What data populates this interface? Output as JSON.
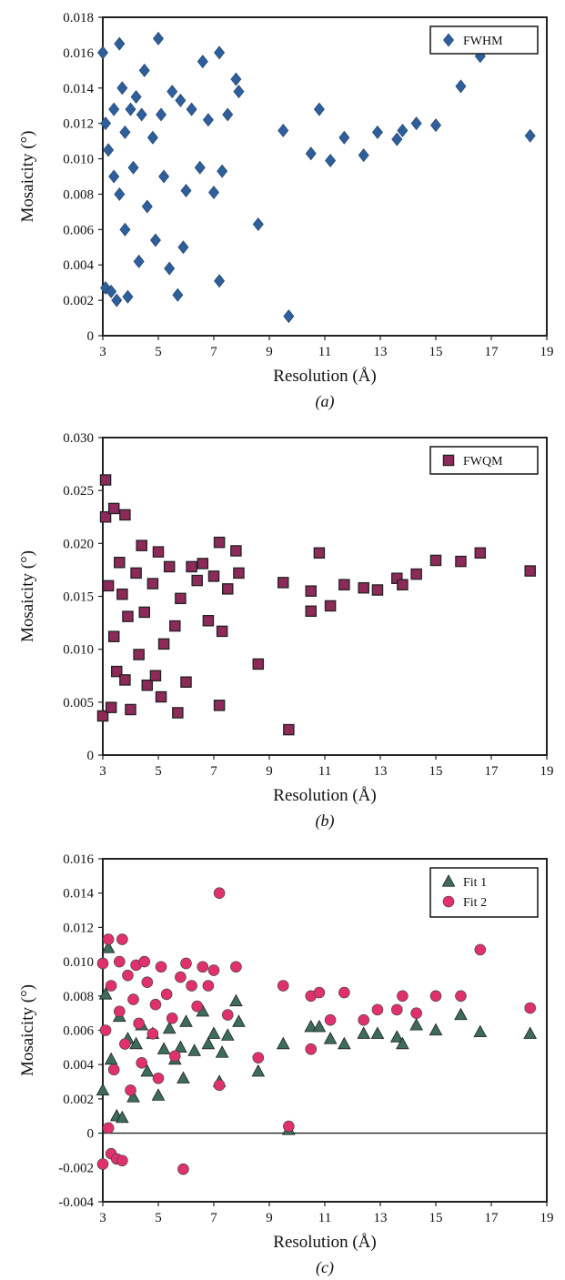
{
  "chart_data": [
    {
      "type": "scatter",
      "panel_label": "(a)",
      "xlabel": "Resolution (Å)",
      "ylabel": "Mosaicity (°)",
      "xlim": [
        3,
        19
      ],
      "ylim": [
        0,
        0.018
      ],
      "x_ticks": [
        "3",
        "5",
        "7",
        "9",
        "11",
        "13",
        "15",
        "17",
        "19"
      ],
      "y_ticks": [
        "0",
        "0.002",
        "0.004",
        "0.006",
        "0.008",
        "0.010",
        "0.012",
        "0.014",
        "0.016",
        "0.018"
      ],
      "legend_position": "top-right",
      "grid": false,
      "series": [
        {
          "name": "FWHM",
          "marker": "diamond",
          "color": "#2e5f9a",
          "points": [
            [
              3.0,
              0.016
            ],
            [
              3.1,
              0.0027
            ],
            [
              3.1,
              0.012
            ],
            [
              3.2,
              0.0105
            ],
            [
              3.3,
              0.0025
            ],
            [
              3.4,
              0.0128
            ],
            [
              3.4,
              0.009
            ],
            [
              3.5,
              0.002
            ],
            [
              3.6,
              0.0165
            ],
            [
              3.6,
              0.008
            ],
            [
              3.7,
              0.014
            ],
            [
              3.8,
              0.006
            ],
            [
              3.8,
              0.0115
            ],
            [
              3.9,
              0.0022
            ],
            [
              4.0,
              0.0128
            ],
            [
              4.1,
              0.0095
            ],
            [
              4.2,
              0.0135
            ],
            [
              4.3,
              0.0042
            ],
            [
              4.4,
              0.0125
            ],
            [
              4.5,
              0.015
            ],
            [
              4.6,
              0.0073
            ],
            [
              4.8,
              0.0112
            ],
            [
              4.9,
              0.0054
            ],
            [
              5.0,
              0.0168
            ],
            [
              5.1,
              0.0125
            ],
            [
              5.2,
              0.009
            ],
            [
              5.4,
              0.0038
            ],
            [
              5.5,
              0.0138
            ],
            [
              5.7,
              0.0023
            ],
            [
              5.8,
              0.0133
            ],
            [
              5.9,
              0.005
            ],
            [
              6.0,
              0.0082
            ],
            [
              6.2,
              0.0128
            ],
            [
              6.5,
              0.0095
            ],
            [
              6.6,
              0.0155
            ],
            [
              6.8,
              0.0122
            ],
            [
              7.0,
              0.0081
            ],
            [
              7.2,
              0.016
            ],
            [
              7.2,
              0.0031
            ],
            [
              7.3,
              0.0093
            ],
            [
              7.5,
              0.0125
            ],
            [
              7.8,
              0.0145
            ],
            [
              7.9,
              0.0138
            ],
            [
              8.6,
              0.0063
            ],
            [
              9.5,
              0.0116
            ],
            [
              9.7,
              0.0011
            ],
            [
              10.5,
              0.0103
            ],
            [
              10.8,
              0.0128
            ],
            [
              11.2,
              0.0099
            ],
            [
              11.7,
              0.0112
            ],
            [
              12.4,
              0.0102
            ],
            [
              12.9,
              0.0115
            ],
            [
              13.6,
              0.0111
            ],
            [
              13.8,
              0.0116
            ],
            [
              14.3,
              0.012
            ],
            [
              15.0,
              0.0119
            ],
            [
              15.9,
              0.0141
            ],
            [
              16.6,
              0.0158
            ],
            [
              18.4,
              0.0113
            ]
          ]
        }
      ]
    },
    {
      "type": "scatter",
      "panel_label": "(b)",
      "xlabel": "Resolution (Å)",
      "ylabel": "Mosaicity (°)",
      "xlim": [
        3,
        19
      ],
      "ylim": [
        0,
        0.03
      ],
      "x_ticks": [
        "3",
        "5",
        "7",
        "9",
        "11",
        "13",
        "15",
        "17",
        "19"
      ],
      "y_ticks": [
        "0",
        "0.005",
        "0.010",
        "0.015",
        "0.020",
        "0.025",
        "0.030"
      ],
      "legend_position": "top-right",
      "grid": false,
      "series": [
        {
          "name": "FWQM",
          "marker": "square",
          "color": "#8e2a5a",
          "points": [
            [
              3.0,
              0.0037
            ],
            [
              3.1,
              0.026
            ],
            [
              3.1,
              0.0225
            ],
            [
              3.2,
              0.016
            ],
            [
              3.3,
              0.0045
            ],
            [
              3.4,
              0.0233
            ],
            [
              3.4,
              0.0112
            ],
            [
              3.5,
              0.0079
            ],
            [
              3.6,
              0.0182
            ],
            [
              3.7,
              0.0152
            ],
            [
              3.8,
              0.0227
            ],
            [
              3.8,
              0.0071
            ],
            [
              3.9,
              0.0131
            ],
            [
              4.0,
              0.0043
            ],
            [
              4.2,
              0.0172
            ],
            [
              4.3,
              0.0095
            ],
            [
              4.4,
              0.0198
            ],
            [
              4.5,
              0.0135
            ],
            [
              4.6,
              0.0066
            ],
            [
              4.8,
              0.0162
            ],
            [
              4.9,
              0.0075
            ],
            [
              5.0,
              0.0192
            ],
            [
              5.1,
              0.0055
            ],
            [
              5.2,
              0.0105
            ],
            [
              5.4,
              0.0178
            ],
            [
              5.6,
              0.0122
            ],
            [
              5.7,
              0.004
            ],
            [
              5.8,
              0.0148
            ],
            [
              6.0,
              0.0069
            ],
            [
              6.2,
              0.0178
            ],
            [
              6.4,
              0.0165
            ],
            [
              6.6,
              0.0181
            ],
            [
              6.8,
              0.0127
            ],
            [
              7.0,
              0.0169
            ],
            [
              7.2,
              0.0201
            ],
            [
              7.2,
              0.0047
            ],
            [
              7.3,
              0.0117
            ],
            [
              7.5,
              0.0157
            ],
            [
              7.8,
              0.0193
            ],
            [
              7.9,
              0.0172
            ],
            [
              8.6,
              0.0086
            ],
            [
              9.5,
              0.0163
            ],
            [
              9.7,
              0.0024
            ],
            [
              10.5,
              0.0136
            ],
            [
              10.5,
              0.0155
            ],
            [
              10.8,
              0.0191
            ],
            [
              11.2,
              0.0141
            ],
            [
              11.7,
              0.0161
            ],
            [
              12.4,
              0.0158
            ],
            [
              12.9,
              0.0156
            ],
            [
              13.6,
              0.0167
            ],
            [
              13.8,
              0.0161
            ],
            [
              14.3,
              0.0171
            ],
            [
              15.0,
              0.0184
            ],
            [
              15.9,
              0.0183
            ],
            [
              16.6,
              0.0191
            ],
            [
              18.4,
              0.0174
            ]
          ]
        }
      ]
    },
    {
      "type": "scatter",
      "panel_label": "(c)",
      "xlabel": "Resolution (Å)",
      "ylabel": "Mosaicity (°)",
      "xlim": [
        3,
        19
      ],
      "ylim": [
        -0.004,
        0.016
      ],
      "x_ticks": [
        "3",
        "5",
        "7",
        "9",
        "11",
        "13",
        "15",
        "17",
        "19"
      ],
      "y_ticks": [
        "-0.004",
        "-0.002",
        "0",
        "0.002",
        "0.004",
        "0.006",
        "0.008",
        "0.010",
        "0.012",
        "0.014",
        "0.016"
      ],
      "zero_line": true,
      "legend_position": "top-right",
      "grid": false,
      "series": [
        {
          "name": "Fit 1",
          "marker": "triangle",
          "color": "#3d6b5c",
          "points": [
            [
              3.0,
              0.0025
            ],
            [
              3.1,
              0.0081
            ],
            [
              3.2,
              0.0108
            ],
            [
              3.3,
              0.0043
            ],
            [
              3.5,
              0.001
            ],
            [
              3.6,
              0.0068
            ],
            [
              3.7,
              0.0009
            ],
            [
              3.9,
              0.0055
            ],
            [
              4.1,
              0.0021
            ],
            [
              4.2,
              0.0052
            ],
            [
              4.4,
              0.0063
            ],
            [
              4.6,
              0.0036
            ],
            [
              4.8,
              0.0058
            ],
            [
              5.0,
              0.0022
            ],
            [
              5.2,
              0.0049
            ],
            [
              5.4,
              0.0061
            ],
            [
              5.6,
              0.0043
            ],
            [
              5.8,
              0.005
            ],
            [
              5.9,
              0.0032
            ],
            [
              6.0,
              0.0065
            ],
            [
              6.3,
              0.0048
            ],
            [
              6.6,
              0.0071
            ],
            [
              6.8,
              0.0052
            ],
            [
              7.0,
              0.0058
            ],
            [
              7.2,
              0.003
            ],
            [
              7.3,
              0.0047
            ],
            [
              7.5,
              0.0057
            ],
            [
              7.8,
              0.0077
            ],
            [
              7.9,
              0.0065
            ],
            [
              8.6,
              0.0036
            ],
            [
              9.5,
              0.0052
            ],
            [
              9.7,
              0.0002
            ],
            [
              10.5,
              0.0062
            ],
            [
              10.8,
              0.0062
            ],
            [
              11.2,
              0.0055
            ],
            [
              11.7,
              0.0052
            ],
            [
              12.4,
              0.0058
            ],
            [
              12.9,
              0.0058
            ],
            [
              13.6,
              0.0056
            ],
            [
              13.8,
              0.0052
            ],
            [
              14.3,
              0.0063
            ],
            [
              15.0,
              0.006
            ],
            [
              15.9,
              0.0069
            ],
            [
              16.6,
              0.0059
            ],
            [
              18.4,
              0.0058
            ]
          ]
        },
        {
          "name": "Fit 2",
          "marker": "circle",
          "color": "#e0306e",
          "points": [
            [
              3.0,
              -0.0018
            ],
            [
              3.0,
              0.0099
            ],
            [
              3.1,
              0.006
            ],
            [
              3.2,
              0.0113
            ],
            [
              3.2,
              0.0003
            ],
            [
              3.3,
              -0.0012
            ],
            [
              3.3,
              0.0086
            ],
            [
              3.4,
              0.0037
            ],
            [
              3.5,
              -0.0015
            ],
            [
              3.6,
              0.01
            ],
            [
              3.6,
              0.0071
            ],
            [
              3.7,
              0.0113
            ],
            [
              3.7,
              -0.0016
            ],
            [
              3.8,
              0.0052
            ],
            [
              3.9,
              0.0092
            ],
            [
              4.0,
              0.0025
            ],
            [
              4.1,
              0.0078
            ],
            [
              4.2,
              0.0098
            ],
            [
              4.3,
              0.0064
            ],
            [
              4.4,
              0.0041
            ],
            [
              4.5,
              0.01
            ],
            [
              4.6,
              0.0088
            ],
            [
              4.8,
              0.0058
            ],
            [
              4.9,
              0.0075
            ],
            [
              5.0,
              0.0032
            ],
            [
              5.1,
              0.0097
            ],
            [
              5.3,
              0.0081
            ],
            [
              5.5,
              0.0067
            ],
            [
              5.6,
              0.0045
            ],
            [
              5.8,
              0.0091
            ],
            [
              5.9,
              -0.0021
            ],
            [
              6.0,
              0.0099
            ],
            [
              6.2,
              0.0086
            ],
            [
              6.4,
              0.0074
            ],
            [
              6.6,
              0.0097
            ],
            [
              6.8,
              0.0086
            ],
            [
              7.0,
              0.0095
            ],
            [
              7.2,
              0.014
            ],
            [
              7.2,
              0.0028
            ],
            [
              7.5,
              0.0069
            ],
            [
              7.8,
              0.0097
            ],
            [
              8.6,
              0.0044
            ],
            [
              9.5,
              0.0086
            ],
            [
              9.7,
              0.0004
            ],
            [
              10.5,
              0.0049
            ],
            [
              10.5,
              0.008
            ],
            [
              10.8,
              0.0082
            ],
            [
              11.2,
              0.0066
            ],
            [
              11.7,
              0.0082
            ],
            [
              12.4,
              0.0066
            ],
            [
              12.9,
              0.0072
            ],
            [
              13.6,
              0.0072
            ],
            [
              13.8,
              0.008
            ],
            [
              14.3,
              0.007
            ],
            [
              15.0,
              0.008
            ],
            [
              15.9,
              0.008
            ],
            [
              16.6,
              0.0107
            ],
            [
              18.4,
              0.0073
            ]
          ]
        }
      ]
    }
  ]
}
